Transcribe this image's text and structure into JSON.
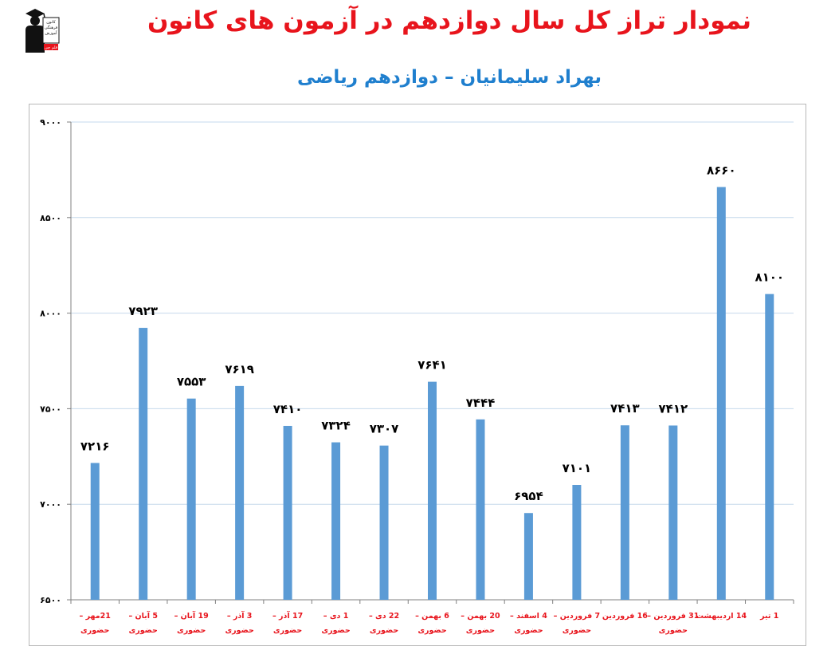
{
  "header": {
    "title": "نمودار تراز کل سال دوازدهم در آزمون های کانون",
    "subtitle": "بهراد سلیمانیان – دوازدهم ریاضی",
    "logo_text_lines": [
      "کانون",
      "فرهنگی",
      "آموزش",
      "قلم چی"
    ]
  },
  "colors": {
    "title": "#e8141c",
    "subtitle": "#1f7fce",
    "bar": "#5b9bd5",
    "grid": "#c6d9ec",
    "category_label": "#e8141c",
    "value_label": "#000000"
  },
  "chart_data": {
    "type": "bar",
    "title": "نمودار تراز کل سال دوازدهم در آزمون های کانون",
    "subtitle": "بهراد سلیمانیان – دوازدهم ریاضی",
    "categories": [
      [
        "21مهر –",
        "حضوری"
      ],
      [
        "5 آبان –",
        "حضوری"
      ],
      [
        "19 آبان –",
        "حضوری"
      ],
      [
        "3 آذر –",
        "حضوری"
      ],
      [
        "17 آذر –",
        "حضوری"
      ],
      [
        "1 دی –",
        "حضوری"
      ],
      [
        "22 دی –",
        "حضوری"
      ],
      [
        "6 بهمن –",
        "حضوری"
      ],
      [
        "20 بهمن –",
        "حضوری"
      ],
      [
        "4 اسفند –",
        "حضوری"
      ],
      [
        "7 فروردین –",
        "حضوری"
      ],
      [
        "16 فروردین"
      ],
      [
        "31 فروردین –",
        "حضوری"
      ],
      [
        "14 اردیبهشت"
      ],
      [
        "1 تیر"
      ]
    ],
    "values": [
      7216,
      7923,
      7553,
      7619,
      7410,
      7324,
      7307,
      7641,
      7444,
      6954,
      7101,
      7413,
      7412,
      8660,
      8100
    ],
    "value_labels": [
      "۷۲۱۶",
      "۷۹۲۳",
      "۷۵۵۳",
      "۷۶۱۹",
      "۷۴۱۰",
      "۷۳۲۴",
      "۷۳۰۷",
      "۷۶۴۱",
      "۷۴۴۴",
      "۶۹۵۴",
      "۷۱۰۱",
      "۷۴۱۳",
      "۷۴۱۲",
      "۸۶۶۰",
      "۸۱۰۰"
    ],
    "ylim": [
      6500,
      9000
    ],
    "yticks": [
      6500,
      7000,
      7500,
      8000,
      8500,
      9000
    ],
    "ytick_labels": [
      "۶۵۰۰",
      "۷۰۰۰",
      "۷۵۰۰",
      "۸۰۰۰",
      "۸۵۰۰",
      "۹۰۰۰"
    ],
    "grid": true,
    "legend": "none",
    "xlabel": "",
    "ylabel": ""
  }
}
